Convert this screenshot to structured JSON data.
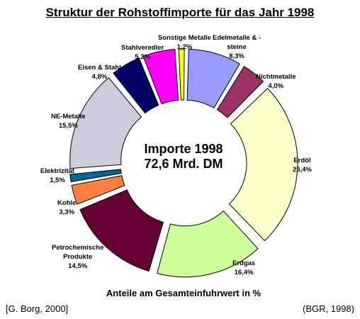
{
  "chart_data": {
    "type": "pie",
    "title": "Struktur der Rohstoffimporte für das Jahr 1998",
    "center_label": [
      "Importe 1998",
      "72,6 Mrd. DM"
    ],
    "caption": "Anteile am Gesamteinfuhrwert in %",
    "slices": [
      {
        "name": "Edelmetalle & -steine",
        "value": 8.3,
        "display": "8,3%",
        "color": "#9999ff"
      },
      {
        "name": "Nichtmetalle",
        "value": 4.0,
        "display": "4,0%",
        "color": "#993366"
      },
      {
        "name": "Erdöl",
        "value": 25.4,
        "display": "25,4%",
        "color": "#ffffcc"
      },
      {
        "name": "Erdgas",
        "value": 16.4,
        "display": "16,4%",
        "color": "#ccff99"
      },
      {
        "name": "Petrochemische Produkte",
        "value": 14.5,
        "display": "14,5%",
        "color": "#660033"
      },
      {
        "name": "Kohle",
        "value": 3.3,
        "display": "3,3%",
        "color": "#ff8040"
      },
      {
        "name": "Elektrizität",
        "value": 1.5,
        "display": "1,5%",
        "color": "#006699"
      },
      {
        "name": "NE-Metalle",
        "value": 15.5,
        "display": "15,5%",
        "color": "#ccccdd"
      },
      {
        "name": "Eisen & Stahl",
        "value": 4.8,
        "display": "4,8%",
        "color": "#000066"
      },
      {
        "name": "Stahlveredler",
        "value": 5.2,
        "display": "5,2%",
        "color": "#ff00ff"
      },
      {
        "name": "Sonstige Metalle",
        "value": 1.2,
        "display": "1,2%",
        "color": "#ffff00"
      }
    ]
  },
  "labels": {
    "edel": [
      "Edelmetalle & -",
      "steine",
      "8,3%"
    ],
    "nicht": [
      "Nichtmetalle",
      "4,0%"
    ],
    "erdoel": [
      "Erdöl",
      "25,4%"
    ],
    "erdgas": [
      "Erdgas",
      "16,4%"
    ],
    "petro": [
      "Petrochemische",
      "Produkte",
      "14,5%"
    ],
    "kohle": [
      "Kohle",
      "3,3%"
    ],
    "elek": [
      "Elektrizität",
      "1,5%"
    ],
    "ne": [
      "NE-Metalle",
      "15,5%"
    ],
    "eisen": [
      "Eisen & Stahl",
      "4,8%"
    ],
    "stahlv": [
      "Stahlveredler",
      "5,2%"
    ],
    "sonst": [
      "Sonstige Metalle",
      "1,2%"
    ]
  },
  "source_left": "[G. Borg, 2000]",
  "source_right": "(BGR, 1998)"
}
